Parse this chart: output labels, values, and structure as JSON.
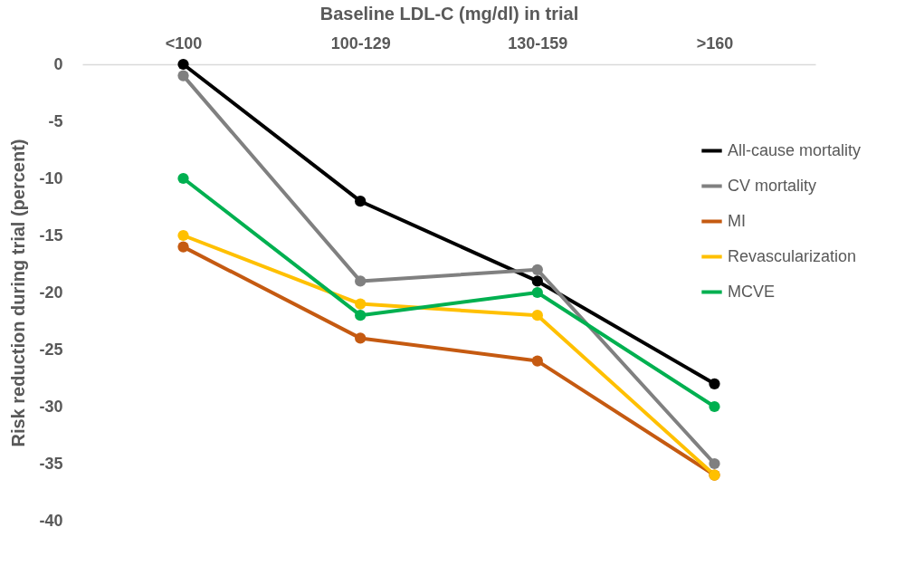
{
  "chart_data": {
    "type": "line",
    "xlabel": "Baseline LDL-C (mg/dl) in trial",
    "ylabel": "Risk reduction during trial (percent)",
    "categories": [
      "<100",
      "100-129",
      "130-159",
      ">160"
    ],
    "series": [
      {
        "name": "All-cause mortality",
        "color": "#000000",
        "values": [
          0,
          -12,
          -19,
          -28
        ]
      },
      {
        "name": "CV mortality",
        "color": "#808080",
        "values": [
          -1,
          -19,
          -18,
          -35
        ]
      },
      {
        "name": "MI",
        "color": "#c55a11",
        "values": [
          -16,
          -24,
          -26,
          -36
        ]
      },
      {
        "name": "Revascularization",
        "color": "#ffc000",
        "values": [
          -15,
          -21,
          -22,
          -36
        ]
      },
      {
        "name": "MCVE",
        "color": "#00b050",
        "values": [
          -10,
          -22,
          -20,
          -30
        ]
      }
    ],
    "ylim": [
      -40,
      0
    ],
    "yticks": [
      0,
      -5,
      -10,
      -15,
      -20,
      -25,
      -30,
      -35,
      -40
    ],
    "grid": false,
    "legend": "right",
    "marker": "circle",
    "line_style": "solid"
  }
}
